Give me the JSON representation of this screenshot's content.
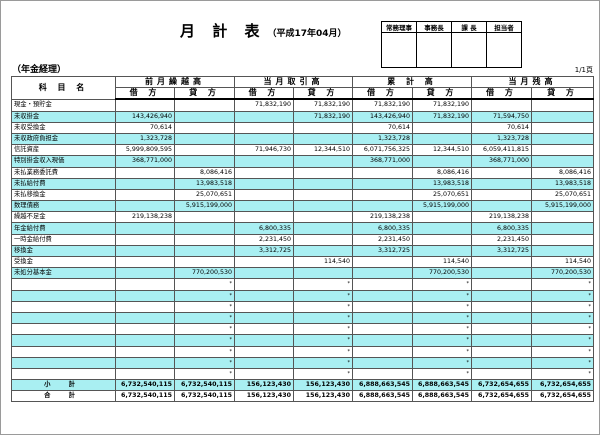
{
  "report": {
    "title": "月 計 表",
    "period": "（平成17年04月）",
    "department": "（年金経理）",
    "page": "1/1頁"
  },
  "stamps": [
    "常務理事",
    "事務長",
    "課 長",
    "担当者"
  ],
  "headers": {
    "account": "科 目 名",
    "groups": [
      "前月繰越高",
      "当月取引高",
      "累 計 高",
      "当月残高"
    ],
    "debit": "借 方",
    "credit": "貸 方"
  },
  "rows": [
    {
      "name": "現金・預貯金",
      "v": [
        "",
        "",
        "71,832,190",
        "71,832,190",
        "71,832,190",
        "71,832,190",
        "",
        ""
      ]
    },
    {
      "name": "未収掛金",
      "v": [
        "143,426,940",
        "",
        "",
        "71,832,190",
        "143,426,940",
        "71,832,190",
        "71,594,750",
        ""
      ]
    },
    {
      "name": "未収受換金",
      "v": [
        "70,614",
        "",
        "",
        "",
        "70,614",
        "",
        "70,614",
        ""
      ]
    },
    {
      "name": "未収政府負担金",
      "v": [
        "1,323,728",
        "",
        "",
        "",
        "1,323,728",
        "",
        "1,323,728",
        ""
      ]
    },
    {
      "name": "信託資産",
      "v": [
        "5,999,809,595",
        "",
        "71,946,730",
        "12,344,510",
        "6,071,756,325",
        "12,344,510",
        "6,059,411,815",
        ""
      ]
    },
    {
      "name": "特別掛金収入現価",
      "v": [
        "368,771,000",
        "",
        "",
        "",
        "368,771,000",
        "",
        "368,771,000",
        ""
      ]
    },
    {
      "name": "未払業務委託費",
      "v": [
        "",
        "8,086,416",
        "",
        "",
        "",
        "8,086,416",
        "",
        "8,086,416"
      ]
    },
    {
      "name": "未払給付費",
      "v": [
        "",
        "13,983,518",
        "",
        "",
        "",
        "13,983,518",
        "",
        "13,983,518"
      ]
    },
    {
      "name": "未払移換金",
      "v": [
        "",
        "25,070,651",
        "",
        "",
        "",
        "25,070,651",
        "",
        "25,070,651"
      ]
    },
    {
      "name": "数理債務",
      "v": [
        "",
        "5,915,199,000",
        "",
        "",
        "",
        "5,915,199,000",
        "",
        "5,915,199,000"
      ]
    },
    {
      "name": "繰越不足金",
      "v": [
        "219,138,238",
        "",
        "",
        "",
        "219,138,238",
        "",
        "219,138,238",
        ""
      ]
    },
    {
      "name": "年金給付費",
      "v": [
        "",
        "",
        "6,800,335",
        "",
        "6,800,335",
        "",
        "6,800,335",
        ""
      ]
    },
    {
      "name": "一時金給付費",
      "v": [
        "",
        "",
        "2,231,450",
        "",
        "2,231,450",
        "",
        "2,231,450",
        ""
      ]
    },
    {
      "name": "移換金",
      "v": [
        "",
        "",
        "3,312,725",
        "",
        "3,312,725",
        "",
        "3,312,725",
        ""
      ]
    },
    {
      "name": "受換金",
      "v": [
        "",
        "",
        "",
        "114,540",
        "",
        "114,540",
        "",
        "114,540"
      ]
    },
    {
      "name": "未処分基本金",
      "v": [
        "",
        "770,200,530",
        "",
        "",
        "",
        "770,200,530",
        "",
        "770,200,530"
      ]
    }
  ],
  "blank_mark": "*",
  "totals": [
    {
      "label": "小 計",
      "v": [
        "6,732,540,115",
        "6,732,540,115",
        "156,123,430",
        "156,123,430",
        "6,888,663,545",
        "6,888,663,545",
        "6,732,654,655",
        "6,732,654,655"
      ]
    },
    {
      "label": "合 計",
      "v": [
        "6,732,540,115",
        "6,732,540,115",
        "156,123,430",
        "156,123,430",
        "6,888,663,545",
        "6,888,663,545",
        "6,732,654,655",
        "6,732,654,655"
      ]
    }
  ]
}
